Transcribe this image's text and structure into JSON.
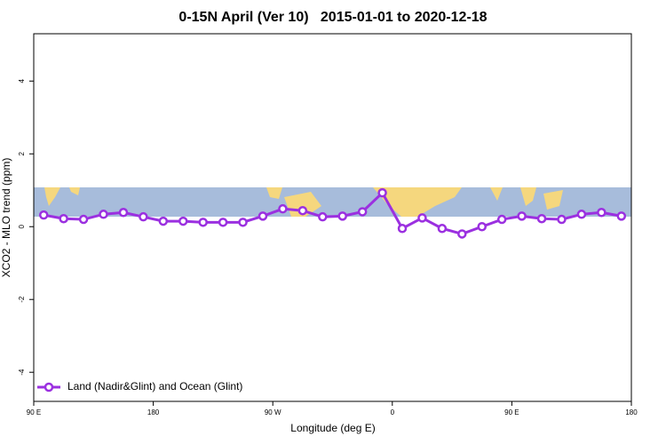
{
  "chart_data": {
    "type": "line",
    "title": "0-15N April (Ver 10)   2015-01-01 to 2020-12-18",
    "x_label": "Longitude (deg E)",
    "y_label": "XCO2 - MLO trend (ppm)",
    "x": [
      97.5,
      112.5,
      127.5,
      142.5,
      157.5,
      172.5,
      187.5,
      202.5,
      217.5,
      232.5,
      247.5,
      262.5,
      277.5,
      292.5,
      307.5,
      322.5,
      337.5,
      352.5,
      367.5,
      382.5,
      397.5,
      412.5,
      427.5,
      442.5,
      457.5,
      472.5,
      487.5,
      502.5,
      517.5,
      532.5
    ],
    "series": [
      {
        "name": "Land (Nadir&Glint) and Ocean (Glint)",
        "color": "#9b30e0",
        "values": [
          0.32,
          0.22,
          0.2,
          0.34,
          0.39,
          0.27,
          0.15,
          0.15,
          0.12,
          0.12,
          0.12,
          0.29,
          0.49,
          0.44,
          0.27,
          0.29,
          0.41,
          0.93,
          -0.05,
          0.24,
          -0.05,
          -0.2,
          0,
          0.2,
          0.29,
          0.22,
          0.2,
          0.34,
          0.39,
          0.29
        ]
      }
    ],
    "xlim": [
      90,
      540
    ],
    "xticks": [
      {
        "value": 90,
        "label": "90 E"
      },
      180,
      {
        "value": 270,
        "label": "90 W"
      },
      {
        "value": 360,
        "label": "0"
      },
      {
        "value": 450,
        "label": "90 E"
      },
      {
        "value": 540,
        "label": "180"
      }
    ],
    "ylim": [
      -4.8,
      5.3
    ],
    "yticks": [
      -4,
      -2,
      0,
      2,
      4
    ],
    "legend": "bottom-left"
  }
}
